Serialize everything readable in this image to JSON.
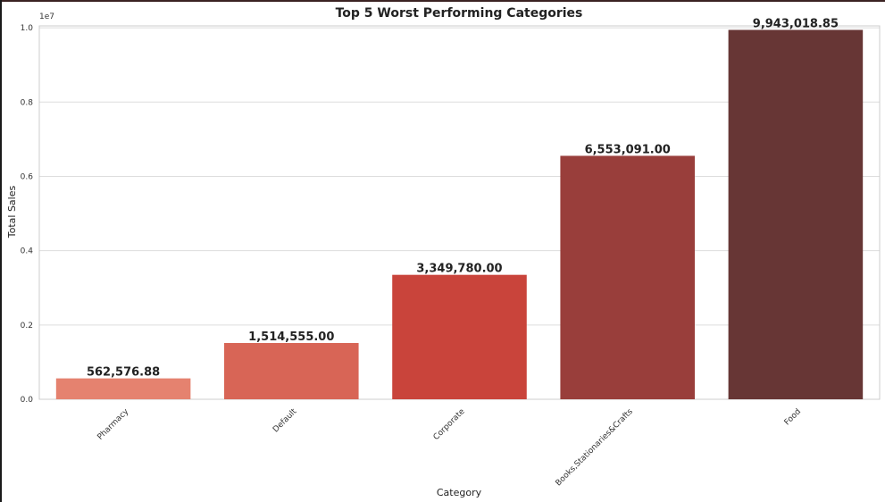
{
  "chart_data": {
    "type": "bar",
    "title": "Top 5 Worst Performing Categories",
    "xlabel": "Category",
    "ylabel": "Total Sales",
    "y_offset_text": "1e7",
    "categories": [
      "Pharmacy",
      "Default",
      "Corporate",
      "Books,Stationaries&Crafts",
      "Food"
    ],
    "values": [
      562576.88,
      1514555.0,
      3349780.0,
      6553091.0,
      9943018.85
    ],
    "value_labels": [
      "562,576.88",
      "1,514,555.00",
      "3,349,780.00",
      "6,553,091.00",
      "9,943,018.85"
    ],
    "ylim": [
      0,
      10050000
    ],
    "yticks": [
      0,
      2000000,
      4000000,
      6000000,
      8000000,
      10000000
    ],
    "ytick_labels": [
      "0.0",
      "0.2",
      "0.4",
      "0.6",
      "0.8",
      "1.0"
    ],
    "colors": [
      "#e5826f",
      "#d86556",
      "#c9443b",
      "#993e3b",
      "#673635"
    ],
    "grid": true
  }
}
